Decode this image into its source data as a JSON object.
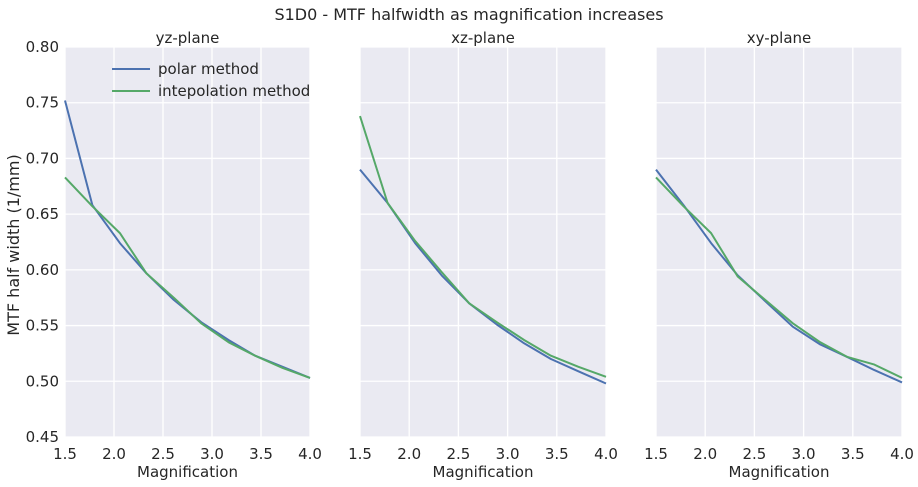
{
  "figure_title": "S1D0 - MTF halfwidth as magnification increases",
  "ylabel": "MTF half width (1/mm)",
  "colors": {
    "polar": "#4C72B0",
    "interp": "#55A868",
    "panel_bg": "#EAEAF2",
    "grid": "#FFFFFF"
  },
  "chart_data": [
    {
      "type": "line",
      "title": "yz-plane",
      "xlabel": "Magnification",
      "ylabel": "MTF half width (1/mm)",
      "xlim": [
        1.5,
        4.0
      ],
      "ylim": [
        0.45,
        0.8
      ],
      "xticks": [
        "1.5",
        "2.0",
        "2.5",
        "3.0",
        "3.5",
        "4.0"
      ],
      "yticks": [
        "0.45",
        "0.50",
        "0.55",
        "0.60",
        "0.65",
        "0.70",
        "0.75",
        "0.80"
      ],
      "grid": true,
      "legend": "top-left",
      "x": [
        1.5,
        1.78,
        2.06,
        2.33,
        2.61,
        2.89,
        3.17,
        3.44,
        3.72,
        4.0
      ],
      "series": [
        {
          "name": "polar method",
          "values": [
            0.752,
            0.658,
            0.624,
            0.597,
            0.573,
            0.553,
            0.537,
            0.523,
            0.513,
            0.503
          ]
        },
        {
          "name": "intepolation method",
          "values": [
            0.683,
            0.657,
            0.633,
            0.597,
            0.575,
            0.552,
            0.535,
            0.523,
            0.512,
            0.503
          ]
        }
      ]
    },
    {
      "type": "line",
      "title": "xz-plane",
      "xlabel": "Magnification",
      "xlim": [
        1.5,
        4.0
      ],
      "ylim": [
        0.45,
        0.8
      ],
      "xticks": [
        "1.5",
        "2.0",
        "2.5",
        "3.0",
        "3.5",
        "4.0"
      ],
      "grid": true,
      "x": [
        1.5,
        1.78,
        2.06,
        2.33,
        2.61,
        2.89,
        3.17,
        3.44,
        3.72,
        4.0
      ],
      "series": [
        {
          "name": "polar method",
          "values": [
            0.69,
            0.66,
            0.624,
            0.595,
            0.57,
            0.551,
            0.534,
            0.52,
            0.509,
            0.498
          ]
        },
        {
          "name": "intepolation method",
          "values": [
            0.738,
            0.66,
            0.626,
            0.598,
            0.57,
            0.553,
            0.537,
            0.523,
            0.513,
            0.504
          ]
        }
      ]
    },
    {
      "type": "line",
      "title": "xy-plane",
      "xlabel": "Magnification",
      "xlim": [
        1.5,
        4.0
      ],
      "ylim": [
        0.45,
        0.8
      ],
      "xticks": [
        "1.5",
        "2.0",
        "2.5",
        "3.0",
        "3.5",
        "4.0"
      ],
      "grid": true,
      "x": [
        1.5,
        1.78,
        2.06,
        2.33,
        2.61,
        2.89,
        3.17,
        3.44,
        3.72,
        4.0
      ],
      "series": [
        {
          "name": "polar method",
          "values": [
            0.69,
            0.658,
            0.624,
            0.595,
            0.572,
            0.549,
            0.533,
            0.522,
            0.51,
            0.499
          ]
        },
        {
          "name": "intepolation method",
          "values": [
            0.683,
            0.657,
            0.633,
            0.594,
            0.573,
            0.552,
            0.535,
            0.522,
            0.515,
            0.503
          ]
        }
      ]
    }
  ]
}
